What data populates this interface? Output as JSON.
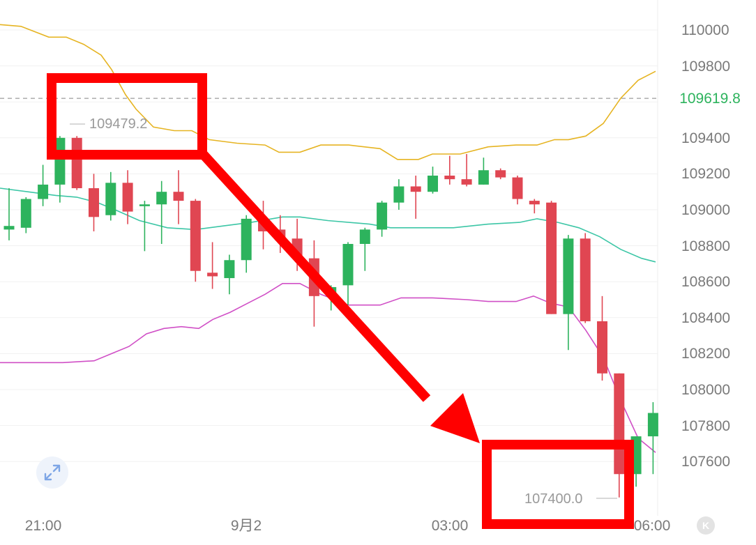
{
  "chart_data": {
    "type": "candlestick",
    "ylim": [
      107200,
      110150
    ],
    "y_ticks": [
      "110000",
      "109800",
      "109400",
      "109200",
      "109000",
      "108800",
      "108600",
      "108400",
      "108200",
      "108000",
      "107800",
      "107600"
    ],
    "x_ticks": [
      "21:00",
      "9月2",
      "03:00",
      "06:00"
    ],
    "current_price": "109619.8",
    "annotations": {
      "high": "109479.2",
      "low": "107400.0"
    },
    "colors": {
      "up": "#2db35d",
      "down": "#e04652",
      "upper_band": "#e6b422",
      "middle_band": "#3cc6a6",
      "lower_band": "#d04fc6",
      "highlight": "#ff0000"
    },
    "candles": [
      {
        "o": 108890,
        "h": 109120,
        "l": 108830,
        "c": 108910
      },
      {
        "o": 108900,
        "h": 109070,
        "l": 108870,
        "c": 109060
      },
      {
        "o": 109060,
        "h": 109250,
        "l": 109020,
        "c": 109140
      },
      {
        "o": 109140,
        "h": 109410,
        "l": 109040,
        "c": 109400
      },
      {
        "o": 109400,
        "h": 109410,
        "l": 109110,
        "c": 109120
      },
      {
        "o": 109120,
        "h": 109200,
        "l": 108880,
        "c": 108960
      },
      {
        "o": 108970,
        "h": 109210,
        "l": 108940,
        "c": 109150
      },
      {
        "o": 109150,
        "h": 109220,
        "l": 108920,
        "c": 108990
      },
      {
        "o": 109020,
        "h": 109050,
        "l": 108770,
        "c": 109030
      },
      {
        "o": 109030,
        "h": 109160,
        "l": 108810,
        "c": 109100
      },
      {
        "o": 109100,
        "h": 109220,
        "l": 108920,
        "c": 109050
      },
      {
        "o": 109050,
        "h": 109060,
        "l": 108600,
        "c": 108660
      },
      {
        "o": 108650,
        "h": 108820,
        "l": 108560,
        "c": 108630
      },
      {
        "o": 108620,
        "h": 108750,
        "l": 108530,
        "c": 108720
      },
      {
        "o": 108720,
        "h": 108970,
        "l": 108650,
        "c": 108950
      },
      {
        "o": 108950,
        "h": 109050,
        "l": 108780,
        "c": 108880
      },
      {
        "o": 108890,
        "h": 108970,
        "l": 108760,
        "c": 108830
      },
      {
        "o": 108840,
        "h": 108950,
        "l": 108660,
        "c": 108730
      },
      {
        "o": 108730,
        "h": 108830,
        "l": 108350,
        "c": 108520
      },
      {
        "o": 108520,
        "h": 108580,
        "l": 108440,
        "c": 108570
      },
      {
        "o": 108580,
        "h": 108820,
        "l": 108470,
        "c": 108810
      },
      {
        "o": 108810,
        "h": 108900,
        "l": 108660,
        "c": 108890
      },
      {
        "o": 108890,
        "h": 109050,
        "l": 108850,
        "c": 109040
      },
      {
        "o": 109040,
        "h": 109170,
        "l": 109000,
        "c": 109130
      },
      {
        "o": 109130,
        "h": 109190,
        "l": 108950,
        "c": 109100
      },
      {
        "o": 109100,
        "h": 109240,
        "l": 109090,
        "c": 109190
      },
      {
        "o": 109190,
        "h": 109300,
        "l": 109140,
        "c": 109170
      },
      {
        "o": 109170,
        "h": 109310,
        "l": 109130,
        "c": 109140
      },
      {
        "o": 109140,
        "h": 109290,
        "l": 109140,
        "c": 109220
      },
      {
        "o": 109220,
        "h": 109230,
        "l": 109170,
        "c": 109180
      },
      {
        "o": 109180,
        "h": 109190,
        "l": 109030,
        "c": 109060
      },
      {
        "o": 109050,
        "h": 109060,
        "l": 108980,
        "c": 109030
      },
      {
        "o": 109040,
        "h": 109050,
        "l": 108420,
        "c": 108420
      },
      {
        "o": 108420,
        "h": 108860,
        "l": 108220,
        "c": 108840
      },
      {
        "o": 108840,
        "h": 108870,
        "l": 108370,
        "c": 108380
      },
      {
        "o": 108380,
        "h": 108520,
        "l": 108050,
        "c": 108090
      },
      {
        "o": 108090,
        "h": 108090,
        "l": 107400,
        "c": 107530
      },
      {
        "o": 107530,
        "h": 107740,
        "l": 107460,
        "c": 107740
      },
      {
        "o": 107740,
        "h": 107930,
        "l": 107530,
        "c": 107870
      }
    ],
    "upper_band": [
      [
        0,
        110030
      ],
      [
        30,
        110020
      ],
      [
        70,
        109960
      ],
      [
        95,
        109960
      ],
      [
        120,
        109920
      ],
      [
        145,
        109860
      ],
      [
        160,
        109780
      ],
      [
        180,
        109640
      ],
      [
        195,
        109560
      ],
      [
        220,
        109460
      ],
      [
        250,
        109440
      ],
      [
        275,
        109440
      ],
      [
        300,
        109390
      ],
      [
        340,
        109370
      ],
      [
        380,
        109360
      ],
      [
        400,
        109320
      ],
      [
        430,
        109320
      ],
      [
        460,
        109360
      ],
      [
        500,
        109360
      ],
      [
        545,
        109340
      ],
      [
        570,
        109280
      ],
      [
        600,
        109280
      ],
      [
        620,
        109310
      ],
      [
        660,
        109310
      ],
      [
        700,
        109350
      ],
      [
        740,
        109360
      ],
      [
        770,
        109360
      ],
      [
        795,
        109390
      ],
      [
        815,
        109390
      ],
      [
        840,
        109410
      ],
      [
        865,
        109480
      ],
      [
        890,
        109620
      ],
      [
        915,
        109720
      ],
      [
        940,
        109770
      ]
    ],
    "middle_band": [
      [
        0,
        109120
      ],
      [
        40,
        109100
      ],
      [
        80,
        109080
      ],
      [
        110,
        109070
      ],
      [
        140,
        109040
      ],
      [
        165,
        109000
      ],
      [
        200,
        108940
      ],
      [
        240,
        108900
      ],
      [
        280,
        108890
      ],
      [
        320,
        108910
      ],
      [
        360,
        108930
      ],
      [
        405,
        108960
      ],
      [
        430,
        108960
      ],
      [
        470,
        108940
      ],
      [
        530,
        108920
      ],
      [
        560,
        108900
      ],
      [
        600,
        108900
      ],
      [
        650,
        108900
      ],
      [
        700,
        108920
      ],
      [
        745,
        108930
      ],
      [
        770,
        108950
      ],
      [
        800,
        108930
      ],
      [
        830,
        108900
      ],
      [
        860,
        108850
      ],
      [
        890,
        108780
      ],
      [
        920,
        108730
      ],
      [
        940,
        108710
      ]
    ],
    "lower_band": [
      [
        0,
        108150
      ],
      [
        40,
        108150
      ],
      [
        90,
        108150
      ],
      [
        135,
        108160
      ],
      [
        160,
        108200
      ],
      [
        185,
        108240
      ],
      [
        210,
        108310
      ],
      [
        235,
        108340
      ],
      [
        260,
        108350
      ],
      [
        285,
        108340
      ],
      [
        305,
        108390
      ],
      [
        330,
        108430
      ],
      [
        355,
        108480
      ],
      [
        380,
        108530
      ],
      [
        405,
        108590
      ],
      [
        430,
        108590
      ],
      [
        460,
        108530
      ],
      [
        500,
        108470
      ],
      [
        545,
        108470
      ],
      [
        575,
        108510
      ],
      [
        620,
        108510
      ],
      [
        670,
        108500
      ],
      [
        700,
        108490
      ],
      [
        740,
        108490
      ],
      [
        765,
        108520
      ],
      [
        790,
        108480
      ],
      [
        815,
        108460
      ],
      [
        840,
        108330
      ],
      [
        865,
        108180
      ],
      [
        890,
        107940
      ],
      [
        915,
        107730
      ],
      [
        940,
        107650
      ]
    ]
  },
  "ui": {
    "expand_icon": "expand-icon",
    "k_icon_label": "K"
  }
}
